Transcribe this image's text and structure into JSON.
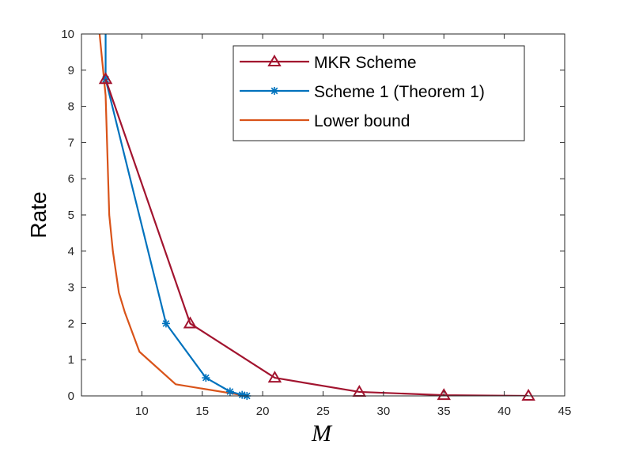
{
  "chart_data": {
    "type": "line",
    "title": "",
    "xlabel": "M",
    "ylabel": "Rate",
    "xlim": [
      5,
      45
    ],
    "ylim": [
      0,
      10
    ],
    "xticks": [
      10,
      15,
      20,
      25,
      30,
      35,
      40,
      45
    ],
    "yticks": [
      0,
      1,
      2,
      3,
      4,
      5,
      6,
      7,
      8,
      9,
      10
    ],
    "grid": false,
    "legend_position": "top-right",
    "series": [
      {
        "name": "MKR Scheme",
        "color": "#a2142f",
        "marker": "triangle",
        "x": [
          7,
          14,
          21,
          28,
          35,
          42
        ],
        "y": [
          8.75,
          2.0,
          0.5,
          0.11,
          0.02,
          0.0
        ]
      },
      {
        "name": "Scheme 1 (Theorem 1)",
        "color": "#0072bd",
        "marker": "asterisk",
        "extends_above_top": true,
        "x": [
          7,
          7,
          12,
          15.3,
          17.3,
          18.3,
          18.7
        ],
        "y": [
          10.0,
          8.75,
          2.0,
          0.5,
          0.12,
          0.03,
          0.0
        ]
      },
      {
        "name": "Lower bound",
        "color": "#d95319",
        "marker": "none",
        "extends_above_top": true,
        "x": [
          6.5,
          7,
          7.3,
          7.6,
          8.1,
          8.6,
          9.8,
          12.8,
          18.7
        ],
        "y": [
          10.0,
          8.3,
          5.0,
          4.0,
          2.85,
          2.3,
          1.22,
          0.32,
          0.0
        ]
      }
    ]
  }
}
